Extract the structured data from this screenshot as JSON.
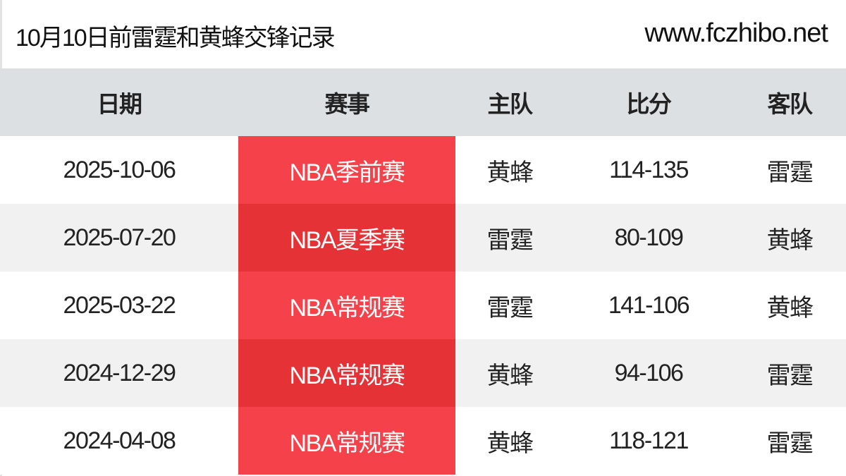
{
  "header": {
    "title": "10月10日前雷霆和黄蜂交锋记录",
    "site": "www.fczhibo.net"
  },
  "table": {
    "columns": [
      "日期",
      "赛事",
      "主队",
      "比分",
      "客队"
    ],
    "rows": [
      [
        "2025-10-06",
        "NBA季前赛",
        "黄蜂",
        "114-135",
        "雷霆"
      ],
      [
        "2025-07-20",
        "NBA夏季赛",
        "雷霆",
        "80-109",
        "黄蜂"
      ],
      [
        "2025-03-22",
        "NBA常规赛",
        "雷霆",
        "141-106",
        "黄蜂"
      ],
      [
        "2024-12-29",
        "NBA常规赛",
        "黄蜂",
        "94-106",
        "雷霆"
      ],
      [
        "2024-04-08",
        "NBA常规赛",
        "黄蜂",
        "118-121",
        "雷霆"
      ]
    ]
  },
  "colors": {
    "event_cell_red": "#f5424a",
    "event_cell_red_alt": "#e53236",
    "header_bg": "#dce0e3"
  }
}
